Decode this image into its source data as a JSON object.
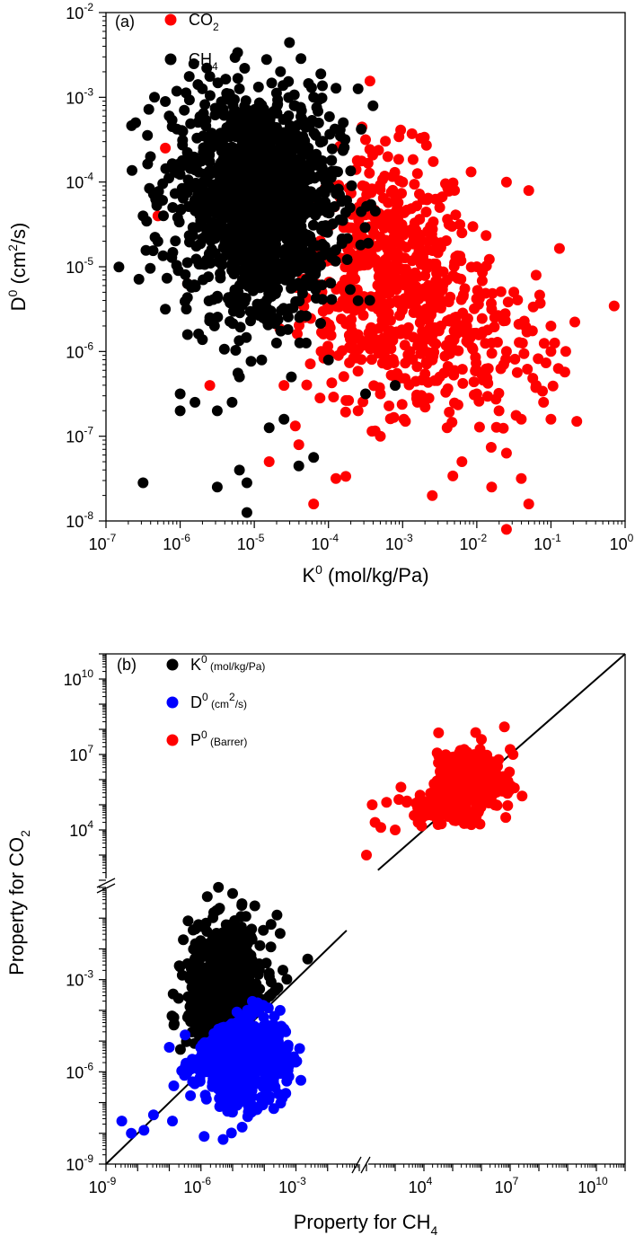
{
  "chart_data": [
    {
      "panel": "(a)",
      "type": "scatter",
      "xscale": "log",
      "yscale": "log",
      "xlabel": "K",
      "xlabel_sup": "0",
      "xlabel_units": " (mol/kg/Pa)",
      "ylabel": "D",
      "ylabel_sup": "0",
      "ylabel_units_pre": " (cm",
      "ylabel_units_sup": "2",
      "ylabel_units_post": "/s)",
      "xlim_exp": [
        -7,
        0
      ],
      "ylim_exp": [
        -8,
        -2
      ],
      "xticks": [
        {
          "base": "10",
          "exp": "-7"
        },
        {
          "base": "10",
          "exp": "-6"
        },
        {
          "base": "10",
          "exp": "-5"
        },
        {
          "base": "10",
          "exp": "-4"
        },
        {
          "base": "10",
          "exp": "-3"
        },
        {
          "base": "10",
          "exp": "-2"
        },
        {
          "base": "10",
          "exp": "-1"
        },
        {
          "base": "10",
          "exp": "0"
        }
      ],
      "yticks": [
        {
          "base": "10",
          "exp": "-8"
        },
        {
          "base": "10",
          "exp": "-7"
        },
        {
          "base": "10",
          "exp": "-6"
        },
        {
          "base": "10",
          "exp": "-5"
        },
        {
          "base": "10",
          "exp": "-4"
        },
        {
          "base": "10",
          "exp": "-3"
        },
        {
          "base": "10",
          "exp": "-2"
        }
      ],
      "legend": [
        {
          "label": "CO",
          "sub": "2",
          "color": "#ff0000"
        },
        {
          "label": "CH",
          "sub": "4",
          "color": "#000000"
        }
      ],
      "series": [
        {
          "name": "CO2",
          "color": "#ff0000",
          "points_log10": [
            [
              -3.0,
              -5.2
            ],
            [
              -2.5,
              -4.3
            ],
            [
              -2.2,
              -4.6
            ],
            [
              -2.0,
              -5.0
            ],
            [
              -1.8,
              -5.5
            ],
            [
              -1.6,
              -6.0
            ],
            [
              -1.5,
              -5.3
            ],
            [
              -1.3,
              -4.1
            ],
            [
              -1.2,
              -6.4
            ],
            [
              -1.0,
              -5.7
            ],
            [
              -0.9,
              -6.2
            ],
            [
              -1.0,
              -6.8
            ],
            [
              -1.6,
              -7.2
            ],
            [
              -1.8,
              -7.6
            ],
            [
              -2.2,
              -7.3
            ],
            [
              -2.4,
              -6.9
            ],
            [
              -2.6,
              -7.7
            ],
            [
              -1.6,
              -8.1
            ],
            [
              -1.3,
              -7.8
            ],
            [
              -1.8,
              -5.9
            ],
            [
              -2.0,
              -6.5
            ],
            [
              -2.3,
              -5.6
            ],
            [
              -2.6,
              -6.1
            ],
            [
              -2.8,
              -6.6
            ],
            [
              -3.1,
              -6.3
            ],
            [
              -3.3,
              -7.0
            ],
            [
              -3.6,
              -6.7
            ],
            [
              -3.9,
              -7.5
            ],
            [
              -4.2,
              -7.8
            ],
            [
              -4.4,
              -7.1
            ],
            [
              -4.6,
              -6.4
            ],
            [
              -4.8,
              -7.3
            ],
            [
              -5.6,
              -6.4
            ],
            [
              -6.3,
              -4.4
            ],
            [
              -6.2,
              -3.6
            ],
            [
              -5.9,
              -5.2
            ],
            [
              -4.1,
              -6.0
            ],
            [
              -3.5,
              -3.5
            ],
            [
              -3.2,
              -3.7
            ],
            [
              -2.8,
              -3.9
            ],
            [
              -3.0,
              -4.0
            ],
            [
              -1.6,
              -4.0
            ],
            [
              -1.0,
              -6.0
            ],
            [
              -0.95,
              -5.9
            ],
            [
              -1.1,
              -6.6
            ],
            [
              -1.4,
              -6.8
            ],
            [
              -1.7,
              -6.7
            ],
            [
              -2.1,
              -5.8
            ],
            [
              -2.5,
              -6.3
            ],
            [
              -2.9,
              -6.0
            ],
            [
              -3.3,
              -6.5
            ],
            [
              -3.7,
              -5.7
            ],
            [
              -4.0,
              -5.5
            ],
            [
              -1.4,
              -7.5
            ],
            [
              -0.8,
              -6.0
            ],
            [
              -1.2,
              -5.1
            ]
          ],
          "clouds_log10": [
            {
              "cx": -3.2,
              "cy": -5.1,
              "sx": 0.55,
              "sy": 0.7,
              "n": 520
            },
            {
              "cx": -2.2,
              "cy": -5.9,
              "sx": 0.65,
              "sy": 0.55,
              "n": 180
            }
          ]
        },
        {
          "name": "CH4",
          "color": "#000000",
          "points_log10": [
            [
              -6.5,
              -7.55
            ],
            [
              -5.5,
              -7.6
            ],
            [
              -5.1,
              -7.9
            ],
            [
              -5.1,
              -7.55
            ],
            [
              -5.2,
              -7.4
            ],
            [
              -4.8,
              -6.9
            ],
            [
              -4.6,
              -6.8
            ],
            [
              -4.4,
              -7.35
            ],
            [
              -4.2,
              -7.25
            ],
            [
              -5.3,
              -6.6
            ],
            [
              -5.5,
              -6.7
            ],
            [
              -5.2,
              -6.3
            ],
            [
              -5.8,
              -6.6
            ],
            [
              -6.0,
              -6.7
            ],
            [
              -6.0,
              -6.5
            ],
            [
              -5.9,
              -5.8
            ],
            [
              -3.1,
              -6.4
            ],
            [
              -3.5,
              -6.5
            ],
            [
              -4.0,
              -6.1
            ],
            [
              -4.5,
              -6.3
            ],
            [
              -4.7,
              -5.9
            ],
            [
              -6.4,
              -3.7
            ],
            [
              -6.6,
              -3.3
            ],
            [
              -6.2,
              -3.05
            ],
            [
              -5.7,
              -2.9
            ],
            [
              -5.2,
              -2.9
            ],
            [
              -4.7,
              -2.95
            ],
            [
              -4.2,
              -3.0
            ],
            [
              -3.6,
              -2.9
            ],
            [
              -3.4,
              -3.1
            ],
            [
              -6.3,
              -4.7
            ],
            [
              -6.1,
              -4.3
            ],
            [
              -6.5,
              -4.4
            ],
            [
              -3.8,
              -3.3
            ],
            [
              -3.9,
              -4.8
            ],
            [
              -6.2,
              -5.5
            ],
            [
              -5.9,
              -5.2
            ],
            [
              -5.6,
              -5.6
            ],
            [
              -4.9,
              -6.1
            ],
            [
              -4.3,
              -5.9
            ],
            [
              -3.6,
              -5.4
            ]
          ],
          "clouds_log10": [
            {
              "cx": -5.0,
              "cy": -4.1,
              "sx": 0.55,
              "sy": 0.6,
              "n": 1100
            },
            {
              "cx": -4.8,
              "cy": -4.9,
              "sx": 0.4,
              "sy": 0.45,
              "n": 250
            }
          ]
        }
      ]
    },
    {
      "panel": "(b)",
      "type": "scatter",
      "xscale": "log",
      "yscale": "log",
      "axis_break": true,
      "xlabel": "Property for CH",
      "xlabel_sub": "4",
      "ylabel": "Property for CO",
      "ylabel_sub": "2",
      "xticks": [
        {
          "base": "10",
          "exp": "-9"
        },
        {
          "base": "10",
          "exp": "-6"
        },
        {
          "base": "10",
          "exp": "-3"
        },
        {
          "base": "10",
          "exp": "4"
        },
        {
          "base": "10",
          "exp": "7"
        },
        {
          "base": "10",
          "exp": "10"
        }
      ],
      "yticks": [
        {
          "base": "10",
          "exp": "-9"
        },
        {
          "base": "10",
          "exp": "-6"
        },
        {
          "base": "10",
          "exp": "-3"
        },
        {
          "base": "10",
          "exp": "4"
        },
        {
          "base": "10",
          "exp": "7"
        },
        {
          "base": "10",
          "exp": "10"
        }
      ],
      "parity_line": "y = x",
      "legend": [
        {
          "label": "K",
          "sup": "0",
          "units": " (mol/kg/Pa)",
          "color": "#000000"
        },
        {
          "label": "D",
          "sup": "0",
          "units_pre": " (cm",
          "units_sup": "2",
          "units_post": "/s)",
          "color": "#0000ff"
        },
        {
          "label": "P",
          "sup": "0",
          "units": " (Barrer)",
          "color": "#ff0000"
        }
      ],
      "series": [
        {
          "name": "K0 (mol/kg/Pa)",
          "color": "#000000",
          "clouds_log10": [
            {
              "cx": -5.2,
              "cy": -3.3,
              "sx": 0.6,
              "sy": 1.0,
              "n": 700
            }
          ],
          "points_log10": [
            [
              -5.8,
              -0.3
            ],
            [
              -5.0,
              -0.2
            ],
            [
              -4.3,
              -0.6
            ],
            [
              -3.6,
              -0.9
            ],
            [
              -3.5,
              -1.5
            ],
            [
              -6.3,
              -2.8
            ],
            [
              -6.0,
              -4.6
            ],
            [
              -4.0,
              -3.8
            ]
          ]
        },
        {
          "name": "D0 (cm2/s)",
          "color": "#0000ff",
          "clouds_log10": [
            {
              "cx": -4.8,
              "cy": -5.5,
              "sx": 0.7,
              "sy": 0.75,
              "n": 700
            }
          ],
          "points_log10": [
            [
              -8.5,
              -7.6
            ],
            [
              -8.2,
              -8.0
            ],
            [
              -7.8,
              -7.9
            ],
            [
              -7.5,
              -7.4
            ],
            [
              -6.9,
              -7.6
            ],
            [
              -5.9,
              -8.1
            ],
            [
              -5.3,
              -8.2
            ],
            [
              -4.7,
              -7.8
            ],
            [
              -3.5,
              -4.0
            ],
            [
              -3.3,
              -5.2
            ],
            [
              -7.0,
              -5.2
            ],
            [
              -6.5,
              -4.8
            ]
          ]
        },
        {
          "name": "P0 (Barrer)",
          "color": "#ff0000",
          "clouds_log10": [
            {
              "cx": 5.6,
              "cy": 5.9,
              "sx": 0.55,
              "sy": 0.55,
              "n": 500
            },
            {
              "cx": 4.6,
              "cy": 4.9,
              "sx": 0.5,
              "sy": 0.35,
              "n": 120
            }
          ],
          "points_log10": [
            [
              2.2,
              5.0
            ],
            [
              2.3,
              4.3
            ],
            [
              2.0,
              3.0
            ],
            [
              2.5,
              4.1
            ],
            [
              2.7,
              5.1
            ],
            [
              3.0,
              4.0
            ],
            [
              3.2,
              5.7
            ],
            [
              3.8,
              4.3
            ],
            [
              4.0,
              5.0
            ],
            [
              6.8,
              8.1
            ],
            [
              7.0,
              7.2
            ],
            [
              6.0,
              7.6
            ],
            [
              5.4,
              7.2
            ],
            [
              4.8,
              6.6
            ],
            [
              6.6,
              6.8
            ],
            [
              7.1,
              7.0
            ]
          ]
        }
      ]
    }
  ]
}
